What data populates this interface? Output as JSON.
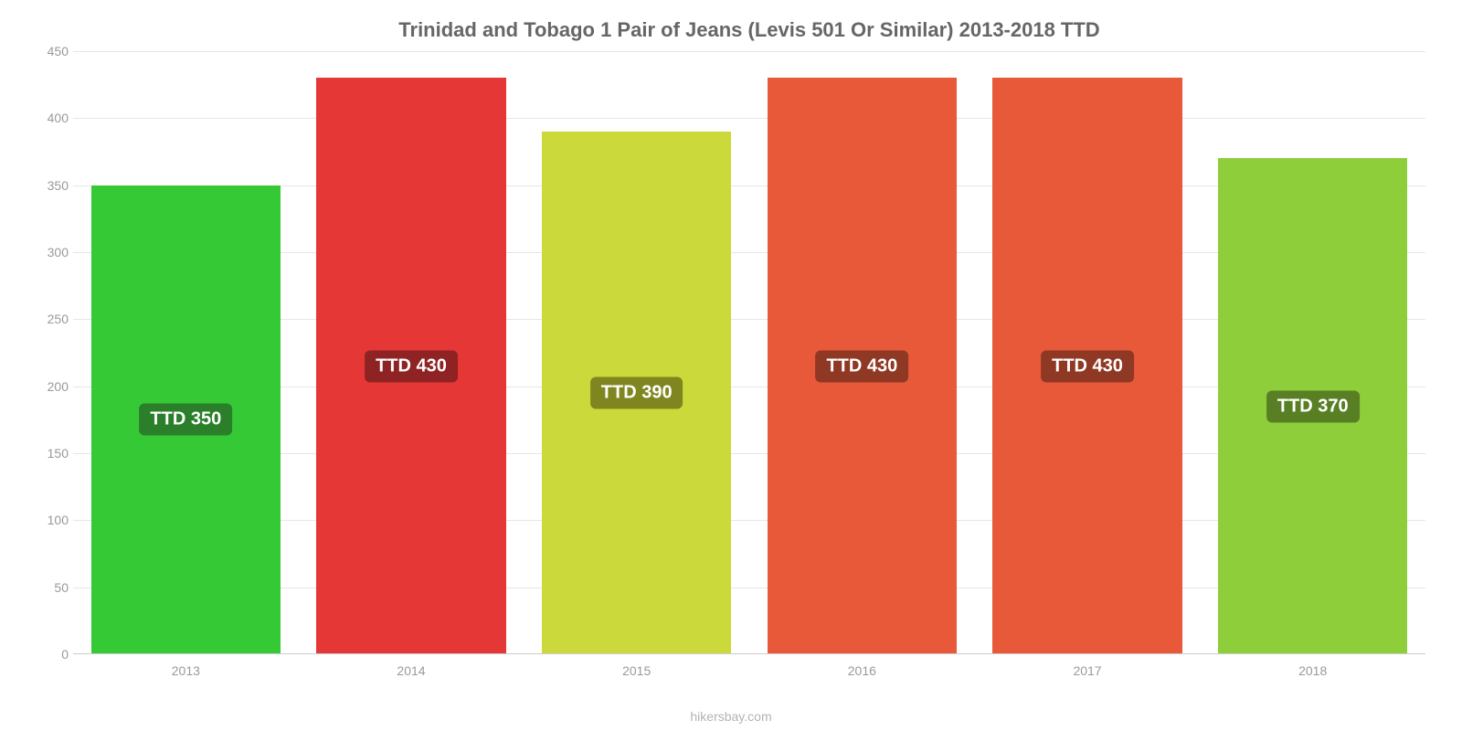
{
  "chart": {
    "type": "bar",
    "title": "Trinidad and Tobago 1 Pair of Jeans (Levis 501 Or Similar) 2013-2018 TTD",
    "title_fontsize": 22,
    "title_color": "#666666",
    "background_color": "#ffffff",
    "grid_color": "#e6e6e6",
    "axis_text_color": "#999999",
    "axis_fontsize": 14,
    "ylim": [
      0,
      450
    ],
    "ytick_step": 50,
    "yticks": [
      0,
      50,
      100,
      150,
      200,
      250,
      300,
      350,
      400,
      450
    ],
    "categories": [
      "2013",
      "2014",
      "2015",
      "2016",
      "2017",
      "2018"
    ],
    "values": [
      350,
      430,
      390,
      430,
      430,
      370
    ],
    "bar_colors": [
      "#36c936",
      "#e63737",
      "#ccd93b",
      "#e8593a",
      "#e8593a",
      "#8fce3b"
    ],
    "value_label_bg_colors": [
      "#2b7f2b",
      "#8f2323",
      "#80861f",
      "#8f3824",
      "#8f3824",
      "#597f25"
    ],
    "value_labels": [
      "TTD 350",
      "TTD 430",
      "TTD 390",
      "TTD 430",
      "TTD 430",
      "TTD 370"
    ],
    "value_label_fontsize": 20,
    "value_label_color": "#ffffff",
    "bar_width": 0.84,
    "attribution": "hikersbay.com",
    "attribution_color": "#b3b3b3",
    "attribution_fontsize": 14
  }
}
